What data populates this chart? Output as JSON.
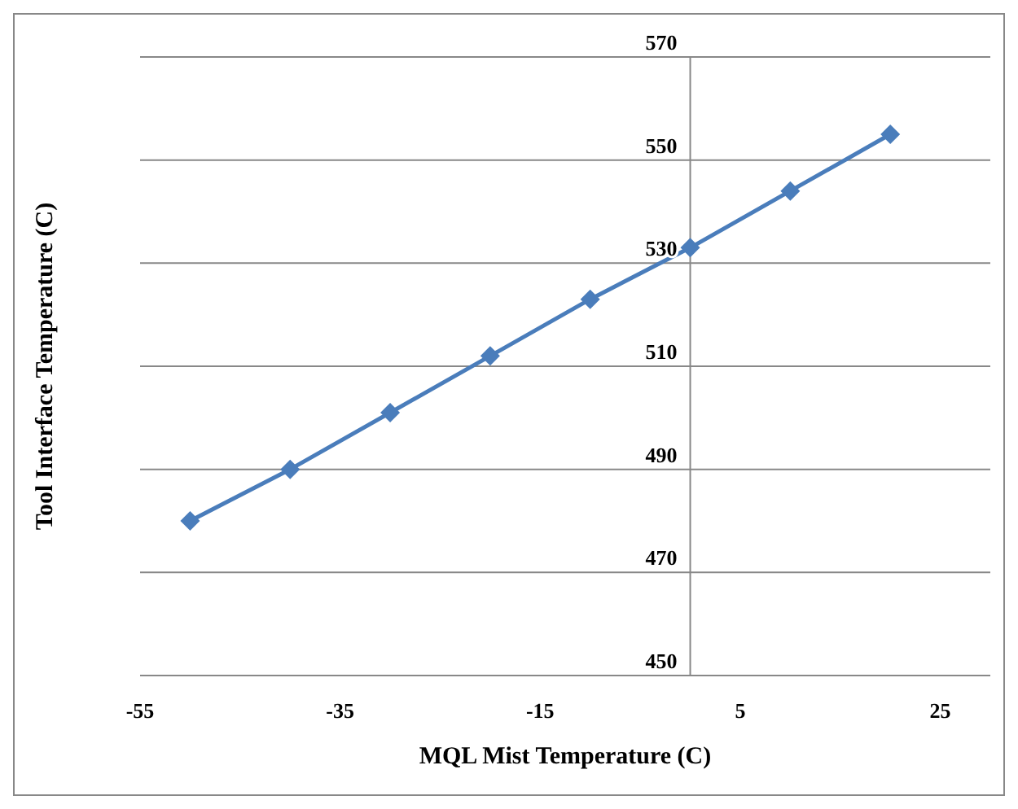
{
  "chart_data": {
    "type": "line",
    "xlabel": "MQL Mist Temperature (C)",
    "ylabel": "Tool Interface Temperature (C)",
    "x": [
      -50,
      -40,
      -30,
      -20,
      -10,
      0,
      10,
      20
    ],
    "series": [
      {
        "color": "#4a7dbb",
        "values": [
          480,
          490,
          501,
          512,
          523,
          533,
          544,
          555
        ]
      }
    ],
    "xlim": [
      -55,
      30
    ],
    "xticks": [
      -55,
      -35,
      -15,
      5,
      25
    ],
    "ylim": [
      450,
      570
    ],
    "yticks": [
      450,
      470,
      490,
      510,
      530,
      550,
      570
    ],
    "grid": "y",
    "marker": "diamond",
    "line_style": "solid"
  }
}
